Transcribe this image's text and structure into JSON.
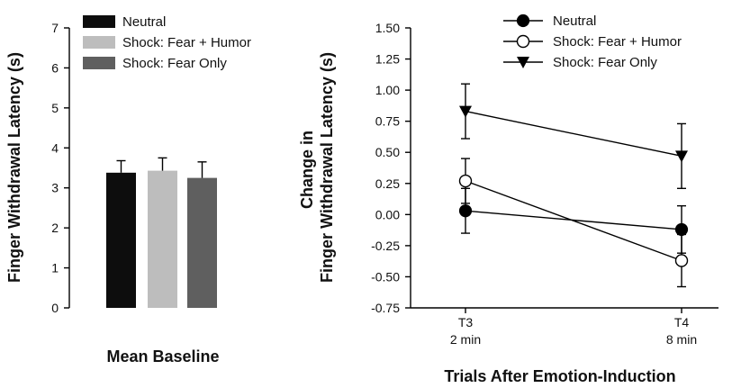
{
  "chart_data": [
    {
      "type": "bar",
      "categories": [
        "Neutral",
        "Shock: Fear + Humor",
        "Shock: Fear Only"
      ],
      "values": [
        3.38,
        3.43,
        3.25
      ],
      "errors": [
        0.3,
        0.32,
        0.4
      ],
      "colors": [
        "#0d0d0d",
        "#bdbdbd",
        "#5f5f5f"
      ],
      "xlabel": "Mean Baseline",
      "ylabel": "Finger Withdrawal Latency (s)",
      "ylim": [
        0,
        7
      ],
      "yticks": [
        "0",
        "1",
        "2",
        "3",
        "4",
        "5",
        "6",
        "7"
      ],
      "legend": [
        "Neutral",
        "Shock: Fear + Humor",
        "Shock: Fear Only"
      ],
      "legend_position": "top-right",
      "grid": false
    },
    {
      "type": "line",
      "x": [
        "T3",
        "T4"
      ],
      "xtick_labels": [
        [
          "T3",
          "2 min"
        ],
        [
          "T4",
          "8 min"
        ]
      ],
      "series": [
        {
          "name": "Neutral",
          "values": [
            0.03,
            -0.12
          ],
          "errors": [
            0.18,
            0.19
          ],
          "marker": "filled-circle"
        },
        {
          "name": "Shock: Fear + Humor",
          "values": [
            0.27,
            -0.37
          ],
          "errors": [
            0.18,
            0.21
          ],
          "marker": "open-circle"
        },
        {
          "name": "Shock: Fear Only",
          "values": [
            0.83,
            0.47
          ],
          "errors": [
            0.22,
            0.26
          ],
          "marker": "filled-triangle-down"
        }
      ],
      "ylabel_lines": [
        "Change in",
        "Finger Withdrawal Latency (s)"
      ],
      "xlabel": "Trials After Emotion-Induction",
      "ylim": [
        -0.75,
        1.5
      ],
      "yticks": [
        "-0.75",
        "-0.50",
        "-0.25",
        "0.00",
        "0.25",
        "0.50",
        "0.75",
        "1.00",
        "1.25",
        "1.50"
      ],
      "legend_position": "top-right",
      "grid": false
    }
  ]
}
